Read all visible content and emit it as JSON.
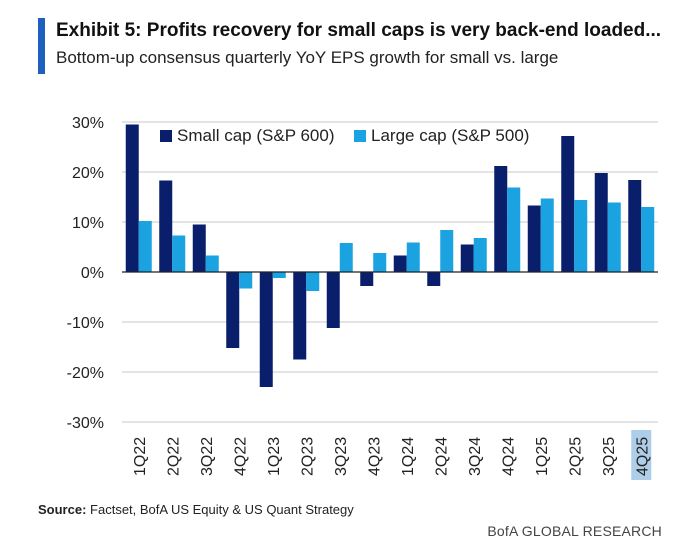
{
  "header": {
    "title": "Exhibit 5: Profits recovery for small caps is very back-end loaded...",
    "subtitle": "Bottom-up consensus quarterly YoY EPS growth for small vs. large"
  },
  "footer": {
    "source_label": "Source:",
    "source_text": "Factset, BofA US Equity & US Quant Strategy",
    "brand": "BofA GLOBAL RESEARCH"
  },
  "colors": {
    "small": "#0a1f6b",
    "large": "#1aa3e0",
    "accent": "#1f5fbf",
    "highlight": "#aecde8"
  },
  "chart_data": {
    "type": "bar",
    "title": "",
    "xlabel": "",
    "ylabel": "",
    "ylim": [
      -30,
      30
    ],
    "yticks": [
      30,
      20,
      10,
      0,
      -10,
      -20,
      -30
    ],
    "ytick_labels": [
      "30%",
      "20%",
      "10%",
      "0%",
      "-10%",
      "-20%",
      "-30%"
    ],
    "grid": true,
    "legend_position": "top",
    "highlighted_category": "4Q25",
    "categories": [
      "1Q22",
      "2Q22",
      "3Q22",
      "4Q22",
      "1Q23",
      "2Q23",
      "3Q23",
      "4Q23",
      "1Q24",
      "2Q24",
      "3Q24",
      "4Q24",
      "1Q25",
      "2Q25",
      "3Q25",
      "4Q25"
    ],
    "series": [
      {
        "name": "Small cap (S&P 600)",
        "values": [
          29.5,
          18.3,
          9.5,
          -15.2,
          -23.0,
          -17.5,
          -11.2,
          -2.8,
          3.3,
          -2.8,
          5.5,
          21.2,
          13.3,
          27.2,
          19.8,
          18.4
        ]
      },
      {
        "name": "Large cap (S&P 500)",
        "values": [
          10.2,
          7.3,
          3.3,
          -3.3,
          -1.2,
          -3.8,
          5.8,
          3.8,
          5.9,
          8.4,
          6.8,
          16.9,
          14.7,
          14.4,
          13.9,
          13.0
        ]
      }
    ]
  }
}
